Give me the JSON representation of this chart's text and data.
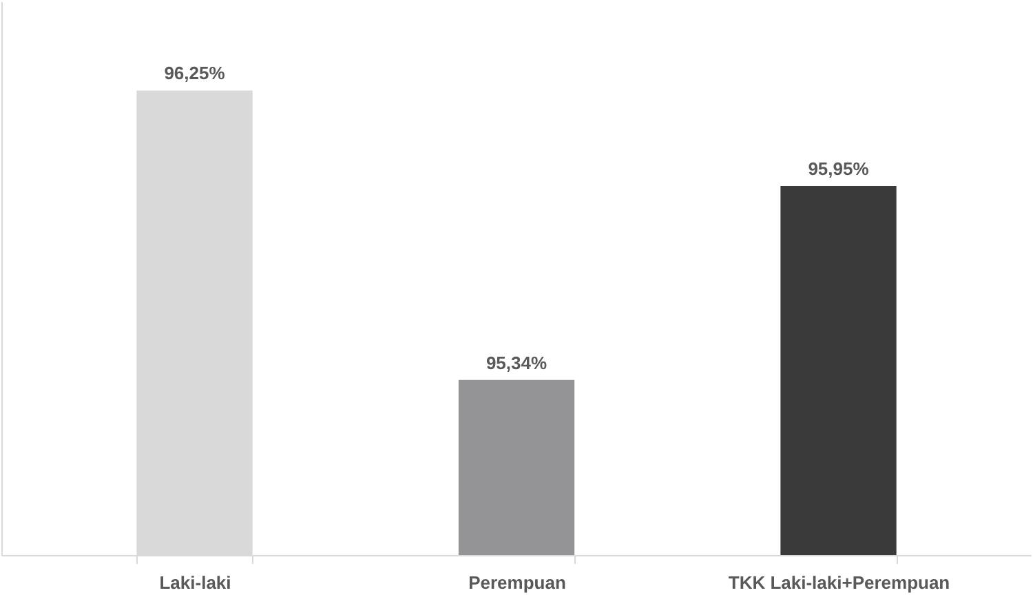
{
  "chart_data": {
    "type": "bar",
    "categories": [
      "Laki-laki",
      "Perempuan",
      "TKK Laki-laki+Perempuan"
    ],
    "values": [
      96.25,
      95.34,
      95.95
    ],
    "colors": [
      "#d9d9d9",
      "#949497",
      "#3b3a3a"
    ],
    "value_labels": [
      "96,25%",
      "95,34%",
      "95,95%"
    ],
    "ylim": [
      94.79,
      96.53
    ],
    "tick_labels": "x"
  }
}
